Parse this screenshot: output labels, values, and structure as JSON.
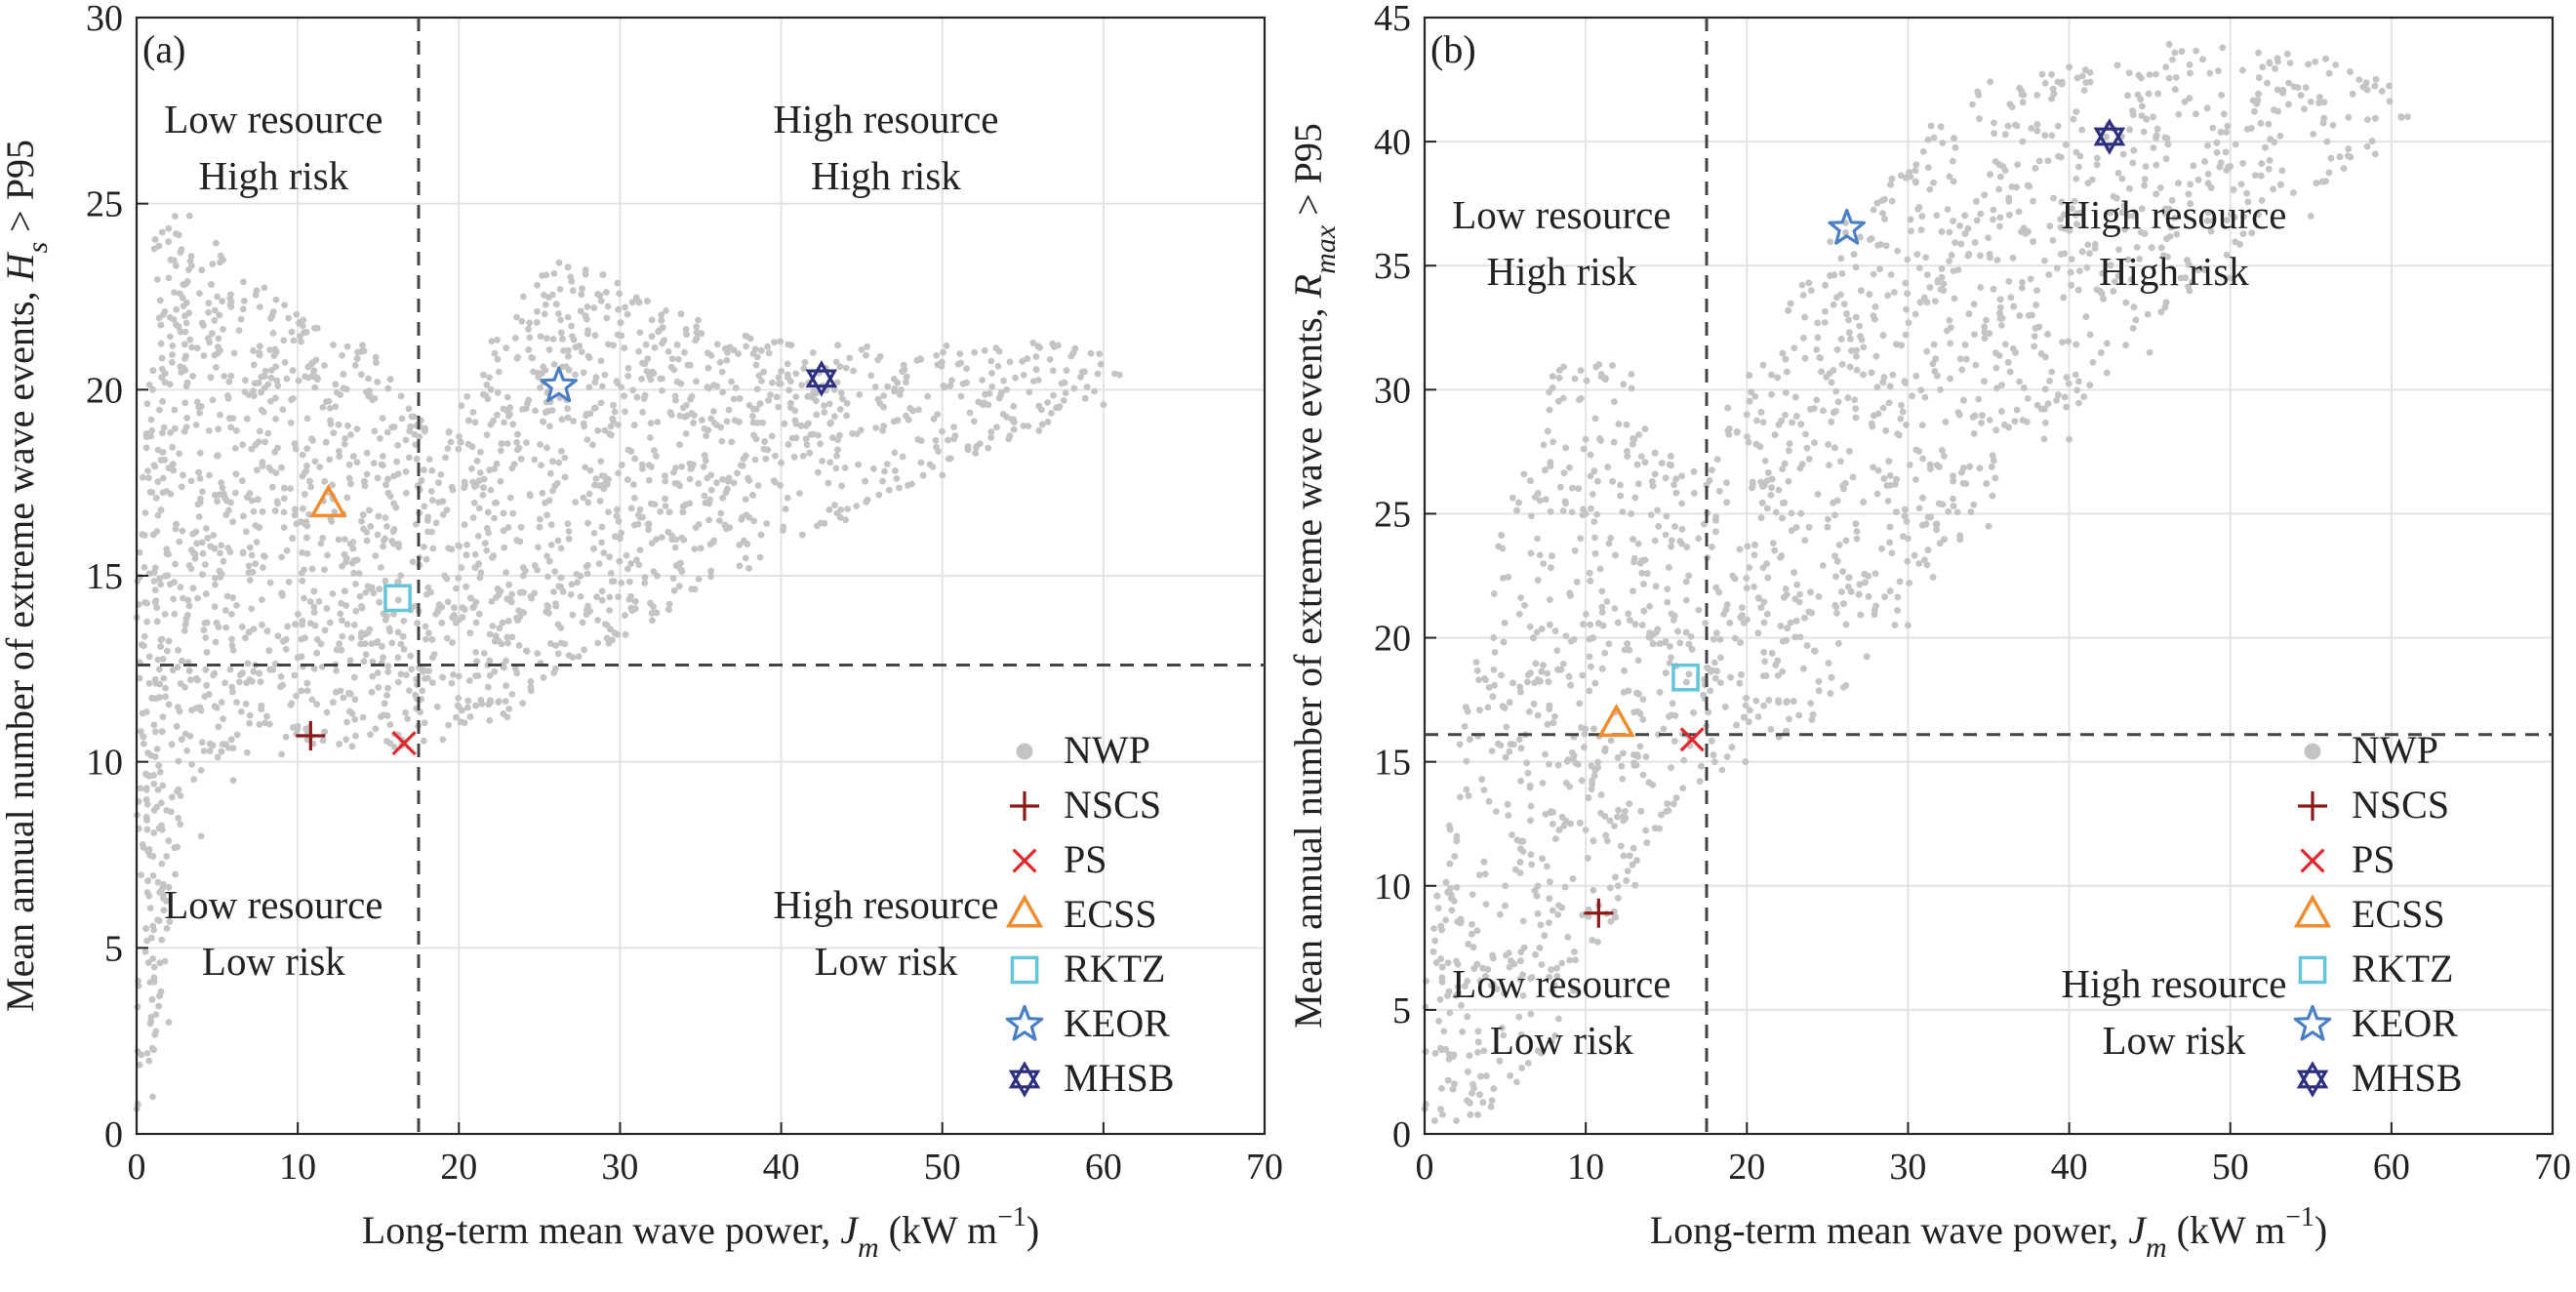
{
  "chart_data": [
    {
      "type": "scatter",
      "panel_label": "(a)",
      "xlabel": "Long-term mean wave power,",
      "xlabel_symbol": "J",
      "xlabel_sub": "m",
      "xlabel_units": "(kW m",
      "xlabel_exp": "−1",
      "xlabel_close": ")",
      "ylabel": "Mean annual number of extreme wave events,",
      "ylabel_symbol": "H",
      "ylabel_sub": "s",
      "ylabel_tail": "> P95",
      "xlim": [
        0,
        70
      ],
      "ylim": [
        0,
        30
      ],
      "xticks": [
        0,
        10,
        20,
        30,
        40,
        50,
        60,
        70
      ],
      "yticks": [
        0,
        5,
        10,
        15,
        20,
        25,
        30
      ],
      "threshold_x": 17.5,
      "threshold_y": 12.6,
      "grid": true,
      "legend_position": "bottom-right",
      "quadrants": [
        {
          "line1": "Low resource",
          "line2": "High risk",
          "x": 8.5,
          "y": 26.9
        },
        {
          "line1": "High resource",
          "line2": "High risk",
          "x": 46.5,
          "y": 26.9
        },
        {
          "line1": "Low resource",
          "line2": "Low risk",
          "x": 8.5,
          "y": 5.8
        },
        {
          "line1": "High resource",
          "line2": "Low risk",
          "x": 46.5,
          "y": 5.8
        }
      ],
      "cloud": [
        [
          0,
          0
        ],
        [
          1,
          2
        ],
        [
          2,
          5
        ],
        [
          3,
          9
        ],
        [
          5,
          10
        ],
        [
          8,
          10.3
        ],
        [
          10,
          10.5
        ],
        [
          12,
          10.3
        ],
        [
          15,
          10.5
        ],
        [
          18,
          10.3
        ],
        [
          20,
          10.8
        ],
        [
          22,
          11
        ],
        [
          24,
          11.5
        ],
        [
          25,
          12.2
        ],
        [
          27,
          12.6
        ],
        [
          30,
          13.3
        ],
        [
          35,
          14.6
        ],
        [
          40,
          15.8
        ],
        [
          45,
          16.8
        ],
        [
          50,
          17.8
        ],
        [
          55,
          18.8
        ],
        [
          60,
          19.8
        ],
        [
          61.5,
          20.5
        ],
        [
          59,
          21.2
        ],
        [
          54,
          21.3
        ],
        [
          48,
          21.2
        ],
        [
          42,
          21.2
        ],
        [
          36,
          21.6
        ],
        [
          30,
          23
        ],
        [
          26,
          23.5
        ],
        [
          22,
          21.5
        ],
        [
          19,
          18.5
        ],
        [
          15,
          21
        ],
        [
          10,
          22
        ],
        [
          6,
          23.5
        ],
        [
          3,
          25
        ],
        [
          1,
          24
        ],
        [
          0,
          15
        ]
      ],
      "cloud_sample_points": [
        [
          1,
          1
        ],
        [
          2,
          3
        ],
        [
          4,
          8
        ],
        [
          6,
          9.5
        ],
        [
          9,
          10.2
        ],
        [
          13,
          10.6
        ],
        [
          16,
          10.4
        ],
        [
          19,
          10.6
        ],
        [
          23,
          11.2
        ],
        [
          26,
          12.5
        ],
        [
          32,
          13.8
        ],
        [
          38,
          15.2
        ],
        [
          44,
          16.5
        ],
        [
          50,
          17.7
        ],
        [
          56,
          18.9
        ],
        [
          60,
          19.6
        ],
        [
          61,
          20.4
        ],
        [
          58,
          20.9
        ],
        [
          52,
          21
        ],
        [
          46,
          20.8
        ],
        [
          40,
          20.5
        ],
        [
          34,
          21
        ],
        [
          28,
          21.5
        ],
        [
          24,
          22.5
        ],
        [
          22,
          20
        ],
        [
          19,
          17
        ],
        [
          16,
          19
        ],
        [
          12,
          19.5
        ],
        [
          8,
          20.5
        ],
        [
          5,
          22.5
        ],
        [
          2,
          23
        ],
        [
          1,
          20
        ],
        [
          5,
          17
        ],
        [
          9,
          15.5
        ],
        [
          13,
          14.2
        ],
        [
          18,
          14.5
        ],
        [
          24,
          15
        ],
        [
          30,
          16
        ],
        [
          36,
          17.5
        ],
        [
          42,
          18.8
        ],
        [
          48,
          19.5
        ],
        [
          54,
          20
        ],
        [
          3,
          12
        ],
        [
          6,
          13
        ],
        [
          10,
          12.8
        ],
        [
          15,
          12
        ],
        [
          20,
          12.3
        ]
      ],
      "cloud_name": "NWP",
      "markers": [
        {
          "name": "NSCS",
          "x": 10.8,
          "y": 10.7
        },
        {
          "name": "PS",
          "x": 16.6,
          "y": 10.5
        },
        {
          "name": "ECSS",
          "x": 11.9,
          "y": 16.9
        },
        {
          "name": "RKTZ",
          "x": 16.2,
          "y": 14.4
        },
        {
          "name": "KEOR",
          "x": 26.2,
          "y": 20.1
        },
        {
          "name": "MHSB",
          "x": 42.5,
          "y": 20.3
        }
      ]
    },
    {
      "type": "scatter",
      "panel_label": "(b)",
      "xlabel": "Long-term mean wave power,",
      "xlabel_symbol": "J",
      "xlabel_sub": "m",
      "xlabel_units": "(kW m",
      "xlabel_exp": "−1",
      "xlabel_close": ")",
      "ylabel": "Mean annual number of extreme wave events,",
      "ylabel_symbol": "R",
      "ylabel_sub": "max",
      "ylabel_tail": "> P95",
      "xlim": [
        0,
        70
      ],
      "ylim": [
        0,
        45
      ],
      "xticks": [
        0,
        10,
        20,
        30,
        40,
        50,
        60,
        70
      ],
      "yticks": [
        0,
        5,
        10,
        15,
        20,
        25,
        30,
        35,
        40,
        45
      ],
      "threshold_x": 17.5,
      "threshold_y": 16.1,
      "grid": true,
      "legend_position": "bottom-right",
      "quadrants": [
        {
          "line1": "Low resource",
          "line2": "High risk",
          "x": 8.5,
          "y": 36.5
        },
        {
          "line1": "High resource",
          "line2": "High risk",
          "x": 46.5,
          "y": 36.5
        },
        {
          "line1": "Low resource",
          "line2": "Low risk",
          "x": 8.5,
          "y": 5.5
        },
        {
          "line1": "High resource",
          "line2": "Low risk",
          "x": 46.5,
          "y": 5.5
        }
      ],
      "cloud": [
        [
          0,
          0
        ],
        [
          2,
          0.3
        ],
        [
          6,
          1.5
        ],
        [
          10,
          6
        ],
        [
          14,
          11
        ],
        [
          17,
          14
        ],
        [
          20,
          15
        ],
        [
          24,
          16.5
        ],
        [
          27,
          18.5
        ],
        [
          30,
          21
        ],
        [
          35,
          25.5
        ],
        [
          40,
          29
        ],
        [
          45,
          32.5
        ],
        [
          50,
          35.5
        ],
        [
          55,
          38
        ],
        [
          60,
          40
        ],
        [
          61.5,
          41.5
        ],
        [
          60,
          43
        ],
        [
          54,
          43.5
        ],
        [
          48,
          44
        ],
        [
          42,
          44
        ],
        [
          36,
          43
        ],
        [
          30,
          40
        ],
        [
          25,
          36
        ],
        [
          20,
          30.5
        ],
        [
          16,
          26.5
        ],
        [
          12,
          32
        ],
        [
          8,
          31
        ],
        [
          5,
          25
        ],
        [
          2,
          16
        ],
        [
          0,
          6
        ]
      ],
      "cloud_sample_points": [
        [
          1,
          1
        ],
        [
          3,
          2
        ],
        [
          6,
          4
        ],
        [
          9,
          7
        ],
        [
          12,
          10
        ],
        [
          15,
          13
        ],
        [
          18,
          15
        ],
        [
          22,
          16
        ],
        [
          26,
          18
        ],
        [
          30,
          20.5
        ],
        [
          35,
          24.5
        ],
        [
          40,
          28
        ],
        [
          45,
          31.5
        ],
        [
          50,
          34.5
        ],
        [
          55,
          37
        ],
        [
          59,
          39.5
        ],
        [
          61,
          41
        ],
        [
          58,
          42.5
        ],
        [
          52,
          43
        ],
        [
          46,
          43
        ],
        [
          40,
          43
        ],
        [
          34,
          41.5
        ],
        [
          29,
          38.5
        ],
        [
          24,
          34
        ],
        [
          20,
          29
        ],
        [
          17,
          24
        ],
        [
          13,
          28
        ],
        [
          10,
          28
        ],
        [
          7,
          24
        ],
        [
          4,
          18
        ],
        [
          2,
          12
        ],
        [
          10,
          25
        ],
        [
          14,
          20
        ],
        [
          20,
          22
        ],
        [
          26,
          26
        ],
        [
          32,
          30
        ],
        [
          38,
          34
        ],
        [
          44,
          37
        ],
        [
          50,
          39
        ],
        [
          56,
          40
        ],
        [
          5,
          10
        ],
        [
          9,
          14
        ],
        [
          13,
          17
        ],
        [
          18,
          19
        ],
        [
          24,
          21
        ],
        [
          30,
          24
        ]
      ],
      "cloud_name": "NWP",
      "markers": [
        {
          "name": "NSCS",
          "x": 10.8,
          "y": 8.9
        },
        {
          "name": "PS",
          "x": 16.6,
          "y": 15.9
        },
        {
          "name": "ECSS",
          "x": 11.9,
          "y": 16.5
        },
        {
          "name": "RKTZ",
          "x": 16.2,
          "y": 18.4
        },
        {
          "name": "KEOR",
          "x": 26.2,
          "y": 36.5
        },
        {
          "name": "MHSB",
          "x": 42.5,
          "y": 40.2
        }
      ]
    }
  ],
  "legend": {
    "items": [
      {
        "name": "NWP",
        "symbol": "dot",
        "color": "#c4c4c4"
      },
      {
        "name": "NSCS",
        "symbol": "plus",
        "color": "#8b1a1a"
      },
      {
        "name": "PS",
        "symbol": "cross",
        "color": "#e3262b"
      },
      {
        "name": "ECSS",
        "symbol": "triangle",
        "color": "#f08c2e"
      },
      {
        "name": "RKTZ",
        "symbol": "square",
        "color": "#63c6db"
      },
      {
        "name": "KEOR",
        "symbol": "star5",
        "color": "#4a7fc4"
      },
      {
        "name": "MHSB",
        "symbol": "star6",
        "color": "#2d2f7f"
      }
    ]
  },
  "colors": {
    "cloud": "#c4c4c4",
    "grid": "#e3e3e3",
    "axis": "#262626",
    "threshold": "#444444"
  }
}
